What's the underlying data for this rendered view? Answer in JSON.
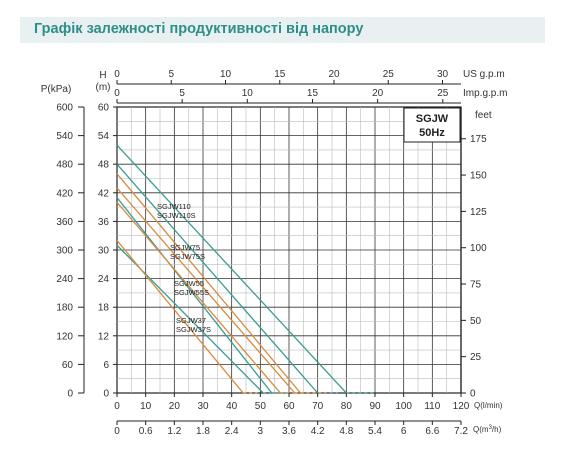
{
  "header": {
    "title": "Графік залежності продуктивності від напору"
  },
  "chart_data": {
    "type": "line",
    "model_box": [
      "SGJW",
      "50Hz"
    ],
    "axes": {
      "pressure": {
        "label": "P(kPa)",
        "ticks": [
          0,
          60,
          120,
          180,
          240,
          300,
          360,
          420,
          480,
          540,
          600
        ]
      },
      "head": {
        "label_top": "H",
        "label_bottom": "(m)",
        "range": [
          0,
          60
        ],
        "ticks": [
          0,
          6,
          12,
          18,
          24,
          30,
          36,
          42,
          48,
          54,
          60
        ]
      },
      "feet": {
        "label": "feet",
        "ticks": [
          0,
          25,
          50,
          75,
          100,
          125,
          150,
          175
        ]
      },
      "flow_lmin": {
        "label": "Q(l/min)",
        "range": [
          0,
          120
        ],
        "ticks": [
          0,
          10,
          20,
          30,
          40,
          50,
          60,
          70,
          80,
          90,
          100,
          110,
          120
        ]
      },
      "flow_m3h": {
        "label": "Q(m",
        "label_sup": "3",
        "label_end": "/h)",
        "ticks": [
          "0",
          "0.6",
          "1.2",
          "1.8",
          "2.4",
          "3",
          "3.6",
          "4.2",
          "4.8",
          "5.4",
          "6",
          "6.6",
          "7.2"
        ]
      },
      "us_gpm": {
        "label": "US g.p.m",
        "ticks": [
          0,
          5,
          10,
          15,
          20,
          25,
          30
        ]
      },
      "imp_gpm": {
        "label": "Imp.g.p.m",
        "ticks": [
          0,
          5,
          10,
          15,
          20,
          25
        ]
      }
    },
    "series": [
      {
        "name": "SGJW110",
        "color": "#3a9c94",
        "x": [
          0,
          80
        ],
        "y": [
          52,
          0
        ],
        "dashed_from": 80,
        "dashed_to": 90
      },
      {
        "name": "SGJW110S",
        "color": "#3a9c94",
        "x": [
          0,
          70
        ],
        "y": [
          48,
          0
        ],
        "dashed_from": 70,
        "dashed_to": 77
      },
      {
        "name": "SGJW75",
        "color": "#d98a3d",
        "x": [
          0,
          64
        ],
        "y": [
          46,
          0
        ],
        "dashed_from": 64,
        "dashed_to": 73
      },
      {
        "name": "SGJW75S",
        "color": "#d98a3d",
        "x": [
          0,
          62
        ],
        "y": [
          43,
          0
        ],
        "dashed_from": 62,
        "dashed_to": 71
      },
      {
        "name": "SGJW55",
        "color": "#3a9c94",
        "x": [
          0,
          54
        ],
        "y": [
          41,
          0
        ],
        "dashed_from": 54,
        "dashed_to": 60
      },
      {
        "name": "SGJW55S",
        "color": "#d98a3d",
        "x": [
          0,
          57
        ],
        "y": [
          40,
          0
        ],
        "dashed_from": 57,
        "dashed_to": 63
      },
      {
        "name": "SGJW37",
        "color": "#3a9c94",
        "x": [
          0,
          51
        ],
        "y": [
          31,
          0
        ],
        "dashed_from": 51,
        "dashed_to": 56
      },
      {
        "name": "SGJW37S",
        "color": "#d98a3d",
        "x": [
          0,
          44
        ],
        "y": [
          32,
          0
        ],
        "dashed_from": 44,
        "dashed_to": 49
      }
    ]
  }
}
